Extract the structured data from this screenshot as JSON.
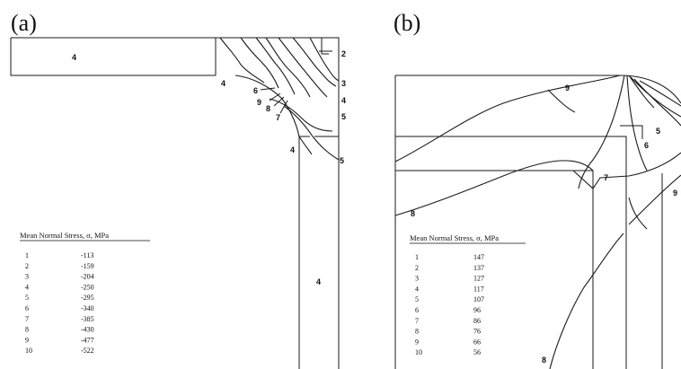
{
  "panels": {
    "a": {
      "label": "(a)",
      "region_label_top": "4",
      "region_label_leg": "4",
      "contour_labels": [
        "2",
        "3",
        "4",
        "5",
        "4",
        "6",
        "9",
        "8",
        "7",
        "4",
        "5"
      ],
      "table": {
        "title": "Mean Normal Stress, σ, MPa",
        "rows": [
          [
            "1",
            "-113"
          ],
          [
            "2",
            "-159"
          ],
          [
            "3",
            "-204"
          ],
          [
            "4",
            "-250"
          ],
          [
            "5",
            "-295"
          ],
          [
            "6",
            "-340"
          ],
          [
            "7",
            "-385"
          ],
          [
            "8",
            "-430"
          ],
          [
            "9",
            "-477"
          ],
          [
            "10",
            "-522"
          ]
        ]
      }
    },
    "b": {
      "label": "(b)",
      "contour_labels": [
        "9",
        "5",
        "6",
        "7",
        "8",
        "9",
        "8"
      ],
      "table": {
        "title": "Mean Normal Stress, σ, MPa",
        "rows": [
          [
            "1",
            "147"
          ],
          [
            "2",
            "137"
          ],
          [
            "3",
            "127"
          ],
          [
            "4",
            "117"
          ],
          [
            "5",
            "107"
          ],
          [
            "6",
            "96"
          ],
          [
            "7",
            "86"
          ],
          [
            "8",
            "76"
          ],
          [
            "9",
            "66"
          ],
          [
            "10",
            "56"
          ]
        ]
      }
    }
  }
}
